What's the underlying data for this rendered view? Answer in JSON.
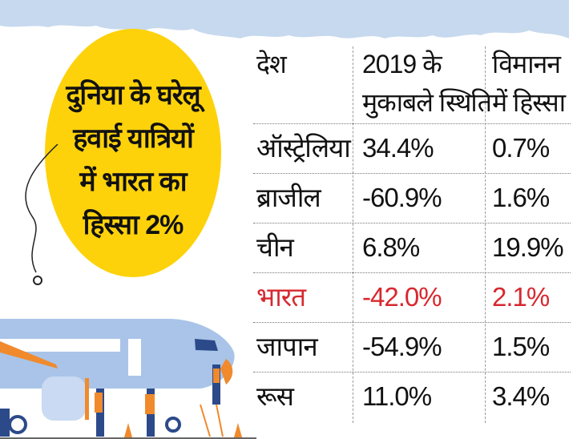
{
  "title_lines": [
    "दुनिया के घरेलू",
    "हवाई यात्रियों",
    "में भारत का",
    "हिस्सा 2%"
  ],
  "colors": {
    "sky": "#c6d9ee",
    "circle": "#fdd20b",
    "highlight": "#d7282f",
    "plane": "#a9c4e8",
    "accent": "#f08a2c"
  },
  "chart_data": {
    "type": "table",
    "columns": [
      "देश",
      "2019 के मुकाबले स्थिति",
      "विमानन में हिस्सा"
    ],
    "header": {
      "col1": "देश",
      "col2_line1": "2019 के",
      "col2_line2": "मुकाबले स्थिति",
      "col3_line1": "विमानन",
      "col3_line2": "में हिस्सा"
    },
    "rows": [
      {
        "country": "ऑस्ट्रेलिया",
        "change": "34.4%",
        "share": "0.7%"
      },
      {
        "country": "ब्राजील",
        "change": "-60.9%",
        "share": "1.6%"
      },
      {
        "country": "चीन",
        "change": "6.8%",
        "share": "19.9%"
      },
      {
        "country": "भारत",
        "change": "-42.0%",
        "share": "2.1%",
        "highlight": true
      },
      {
        "country": "जापान",
        "change": "-54.9%",
        "share": "1.5%"
      },
      {
        "country": "रूस",
        "change": "11.0%",
        "share": "3.4%"
      }
    ]
  }
}
